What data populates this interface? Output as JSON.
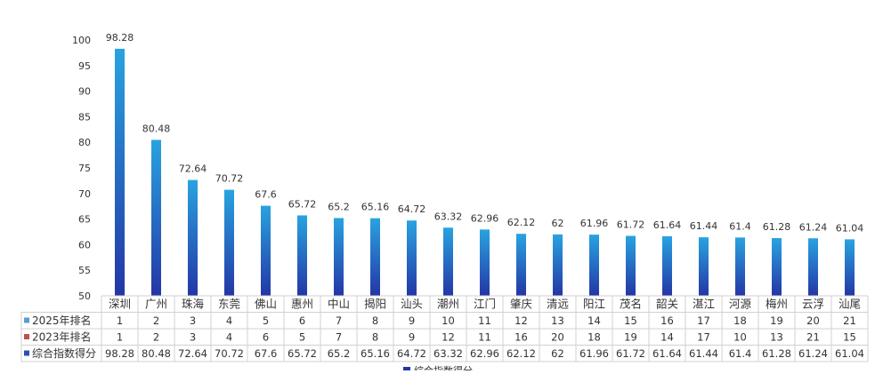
{
  "chart_data": {
    "type": "bar",
    "categories": [
      "深圳",
      "广州",
      "珠海",
      "东莞",
      "佛山",
      "惠州",
      "中山",
      "揭阳",
      "汕头",
      "潮州",
      "江门",
      "肇庆",
      "清远",
      "阳江",
      "茂名",
      "韶关",
      "湛江",
      "河源",
      "梅州",
      "云浮",
      "汕尾"
    ],
    "ylim": [
      50,
      100
    ],
    "yticks": [
      50,
      55,
      60,
      65,
      70,
      75,
      80,
      85,
      90,
      95,
      100
    ],
    "grid": false,
    "series": [
      {
        "name": "综合指数得分",
        "values": [
          98.28,
          80.48,
          72.64,
          70.72,
          67.6,
          65.72,
          65.2,
          65.16,
          64.72,
          63.32,
          62.96,
          62.12,
          62,
          61.96,
          61.72,
          61.64,
          61.44,
          61.4,
          61.28,
          61.24,
          61.04
        ]
      }
    ],
    "table": {
      "rows": [
        {
          "label": "2025年排名",
          "marker_color": "#5b9bd5",
          "values": [
            "1",
            "2",
            "3",
            "4",
            "5",
            "6",
            "7",
            "8",
            "9",
            "10",
            "11",
            "12",
            "13",
            "14",
            "15",
            "16",
            "17",
            "18",
            "19",
            "20",
            "21"
          ]
        },
        {
          "label": "2023年排名",
          "marker_color": "#c0504d",
          "values": [
            "1",
            "2",
            "3",
            "4",
            "6",
            "5",
            "7",
            "8",
            "9",
            "12",
            "11",
            "16",
            "20",
            "18",
            "19",
            "14",
            "17",
            "10",
            "13",
            "21",
            "15"
          ]
        },
        {
          "label": "综合指数得分",
          "marker_color": "#2f4fb0",
          "values": [
            "98.28",
            "80.48",
            "72.64",
            "70.72",
            "67.6",
            "65.72",
            "65.2",
            "65.16",
            "64.72",
            "63.32",
            "62.96",
            "62.12",
            "62",
            "61.96",
            "61.72",
            "61.64",
            "61.44",
            "61.4",
            "61.28",
            "61.24",
            "61.04"
          ]
        }
      ]
    },
    "legend": {
      "position": "bottom",
      "text": "综合指数得分"
    },
    "colors": {
      "bar_top": "#29a3e0",
      "bar_bottom": "#2336a6",
      "text": "#333333",
      "table_border": "#d0d0d0"
    }
  }
}
